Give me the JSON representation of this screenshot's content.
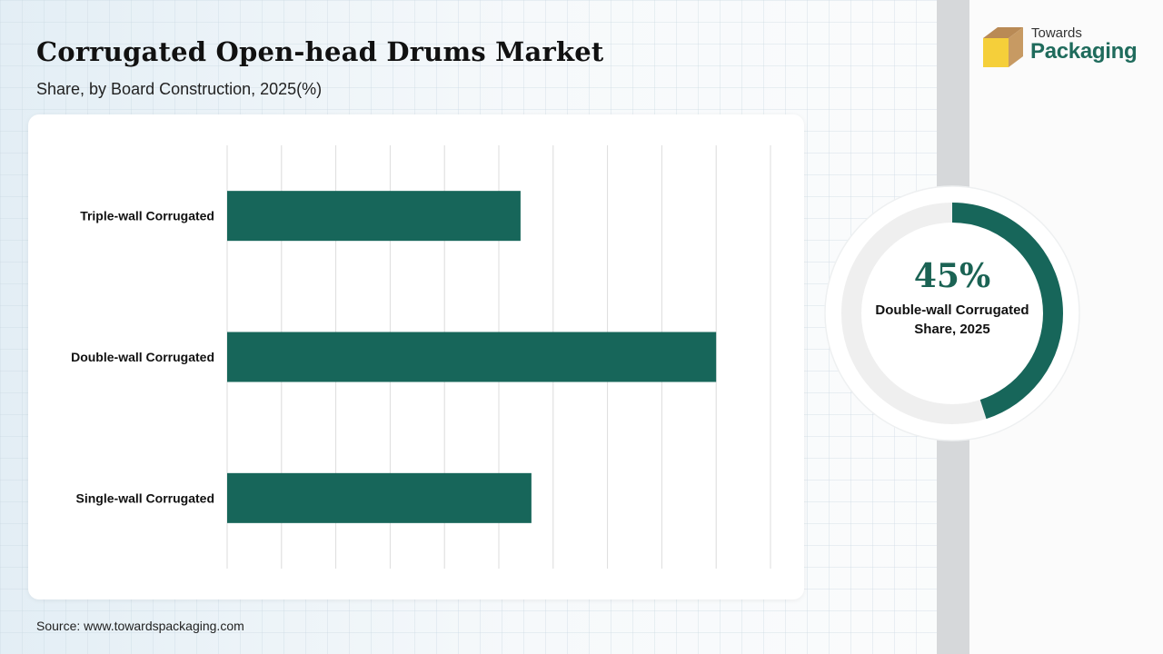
{
  "header": {
    "title": "Corrugated Open-head Drums Market",
    "subtitle": "Share, by Board Construction, 2025(%)"
  },
  "logo": {
    "line1": "Towards",
    "line2": "Packaging",
    "icon": "box-icon"
  },
  "chart_data": [
    {
      "type": "bar",
      "orientation": "horizontal",
      "categories": [
        "Triple-wall Corrugated",
        "Double-wall Corrugated",
        "Single-wall Corrugated"
      ],
      "values": [
        27,
        45,
        28
      ],
      "xlim": [
        0,
        50
      ],
      "grid": true,
      "title": "",
      "xlabel": "",
      "ylabel": "",
      "bar_color": "#17665a"
    },
    {
      "type": "pie",
      "variant": "donut",
      "value": 45,
      "label": "45%",
      "caption": "Double-wall Corrugated Share, 2025",
      "fill_color": "#17665a",
      "track_color": "#efefef"
    }
  ],
  "footer": {
    "source": "Source: www.towardspackaging.com"
  }
}
